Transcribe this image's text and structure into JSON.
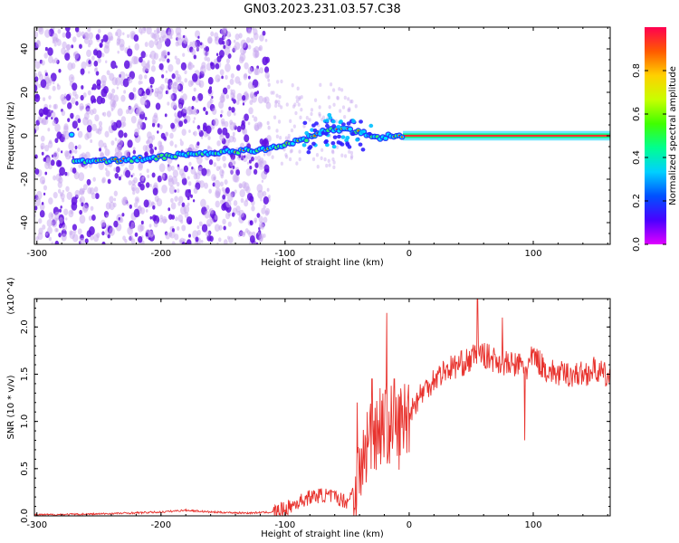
{
  "title": "GN03.2023.231.03.57.C38",
  "colors": {
    "snr_line": "#e8332e",
    "dot_light": "#c8a8f0",
    "dot_dark": "#6010e0",
    "frame": "#000000",
    "colormap": [
      "#e000ff",
      "#4a00ff",
      "#0050ff",
      "#00d0ff",
      "#00ff90",
      "#40ff00",
      "#c8ff00",
      "#ffd000",
      "#ff5a00",
      "#ff0050"
    ]
  },
  "chart_data": [
    {
      "type": "heatmap",
      "title": "GN03.2023.231.03.57.C38",
      "xlabel": "Height of straight line (km)",
      "ylabel": "Frequency (Hz)",
      "xlim": [
        -302,
        162
      ],
      "ylim": [
        -50,
        50
      ],
      "xticks": [
        -300,
        -200,
        -100,
        0,
        100
      ],
      "yticks": [
        -40,
        -20,
        0,
        20,
        40
      ],
      "colorbar": {
        "label": "Normalized spectral amplitude",
        "range": [
          0,
          1
        ],
        "ticks": [
          0.0,
          0.2,
          0.4,
          0.6,
          0.8
        ]
      },
      "ridge": {
        "x": [
          -270,
          -240,
          -210,
          -180,
          -150,
          -120,
          -100,
          -85,
          -70,
          -55,
          -45,
          -35,
          -25,
          -15,
          -5,
          0,
          50,
          100,
          162
        ],
        "hz": [
          -12,
          -11.5,
          -10.5,
          -8.5,
          -7.5,
          -6.5,
          -4,
          -2,
          2,
          3,
          2,
          1,
          -1,
          0,
          0,
          0,
          0,
          0,
          0
        ]
      }
    },
    {
      "type": "line",
      "xlabel": "Height of straight line (km)",
      "ylabel": "SNR (10 * v/v)",
      "y_multiplier_label": "(x10^4)",
      "xlim": [
        -302,
        162
      ],
      "ylim": [
        0,
        2.3
      ],
      "xticks": [
        -300,
        -200,
        -100,
        0,
        100
      ],
      "yticks": [
        0.0,
        0.5,
        1.0,
        1.5,
        2.0
      ],
      "series": [
        {
          "x": [
            -302,
            -250,
            -200,
            -180,
            -160,
            -130,
            -110,
            -100,
            -90,
            -80,
            -70,
            -60,
            -50,
            -40,
            -35,
            -30,
            -25,
            -20,
            -15,
            -10,
            0,
            10,
            20,
            30,
            40,
            50,
            55,
            60,
            70,
            80,
            90,
            95,
            100,
            110,
            120,
            130,
            140,
            150,
            162
          ],
          "values": [
            0.01,
            0.02,
            0.04,
            0.06,
            0.04,
            0.03,
            0.04,
            0.07,
            0.14,
            0.2,
            0.22,
            0.2,
            0.15,
            0.4,
            0.7,
            0.9,
            0.95,
            1.0,
            0.95,
            0.9,
            1.1,
            1.3,
            1.45,
            1.55,
            1.6,
            1.65,
            1.75,
            1.7,
            1.65,
            1.6,
            1.6,
            1.55,
            1.7,
            1.55,
            1.5,
            1.5,
            1.5,
            1.55,
            1.45
          ],
          "spikes": [
            {
              "x": -42,
              "value": 1.2
            },
            {
              "x": -30,
              "value": 1.45
            },
            {
              "x": -18,
              "value": 2.15
            },
            {
              "x": -12,
              "value": 1.45
            },
            {
              "x": 55,
              "value": 2.3
            },
            {
              "x": 75,
              "value": 2.1
            },
            {
              "x": 93,
              "value": 0.8
            }
          ]
        }
      ]
    }
  ]
}
